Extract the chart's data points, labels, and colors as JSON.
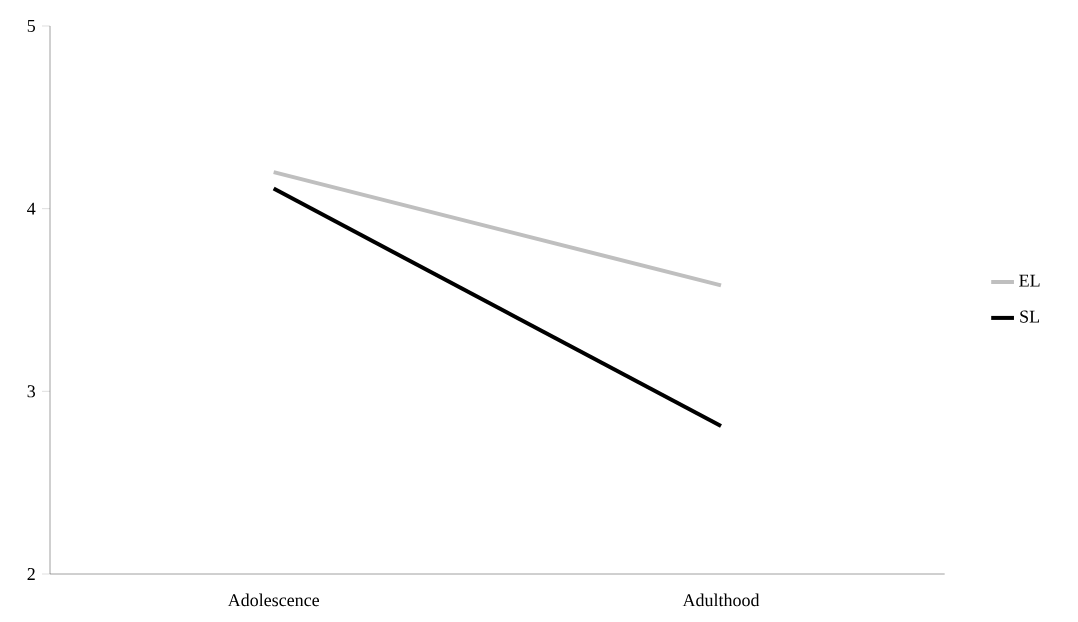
{
  "chart_data": {
    "type": "line",
    "categories": [
      "Adolescence",
      "Adulthood"
    ],
    "series": [
      {
        "name": "EL",
        "color": "#bfbfbf",
        "values": [
          4.2,
          3.58
        ]
      },
      {
        "name": "SL",
        "color": "#000000",
        "values": [
          4.11,
          2.81
        ]
      }
    ],
    "ylim": [
      2,
      5
    ],
    "yticks": [
      2,
      3,
      4,
      5
    ],
    "legend": "right"
  }
}
